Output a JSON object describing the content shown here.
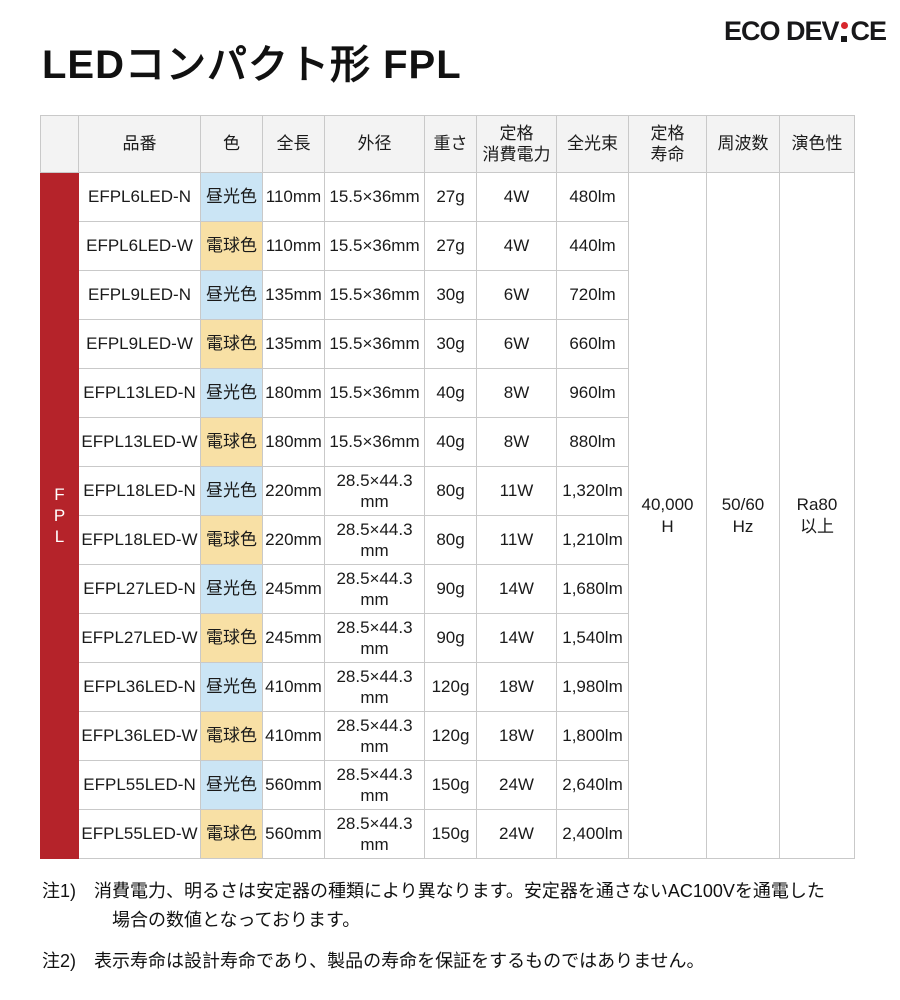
{
  "page": {
    "title": "LEDコンパクト形 FPL",
    "logo": {
      "part1": "ECO DEV",
      "part2": "CE"
    }
  },
  "colors": {
    "accent_red": "#b5232a",
    "daylight_bg": "#cbe5f5",
    "warm_bg": "#f8e0a5",
    "logo_dot_red": "#d7262c",
    "header_bg": "#f3f3f3",
    "border": "#c9c9c9"
  },
  "table": {
    "row_label": "FPL",
    "headers": [
      "品番",
      "色",
      "全長",
      "外径",
      "重さ",
      "定格\n消費電力",
      "全光束",
      "定格\n寿命",
      "周波数",
      "演色性"
    ],
    "rows": [
      {
        "model": "EFPL6LED-N",
        "color": "昼光色",
        "color_type": "daylight",
        "length": "110mm",
        "diameter": "15.5×36mm",
        "weight": "27g",
        "power": "4W",
        "flux": "480lm"
      },
      {
        "model": "EFPL6LED-W",
        "color": "電球色",
        "color_type": "warm",
        "length": "110mm",
        "diameter": "15.5×36mm",
        "weight": "27g",
        "power": "4W",
        "flux": "440lm"
      },
      {
        "model": "EFPL9LED-N",
        "color": "昼光色",
        "color_type": "daylight",
        "length": "135mm",
        "diameter": "15.5×36mm",
        "weight": "30g",
        "power": "6W",
        "flux": "720lm"
      },
      {
        "model": "EFPL9LED-W",
        "color": "電球色",
        "color_type": "warm",
        "length": "135mm",
        "diameter": "15.5×36mm",
        "weight": "30g",
        "power": "6W",
        "flux": "660lm"
      },
      {
        "model": "EFPL13LED-N",
        "color": "昼光色",
        "color_type": "daylight",
        "length": "180mm",
        "diameter": "15.5×36mm",
        "weight": "40g",
        "power": "8W",
        "flux": "960lm"
      },
      {
        "model": "EFPL13LED-W",
        "color": "電球色",
        "color_type": "warm",
        "length": "180mm",
        "diameter": "15.5×36mm",
        "weight": "40g",
        "power": "8W",
        "flux": "880lm"
      },
      {
        "model": "EFPL18LED-N",
        "color": "昼光色",
        "color_type": "daylight",
        "length": "220mm",
        "diameter": "28.5×44.3\nmm",
        "weight": "80g",
        "power": "11W",
        "flux": "1,320lm"
      },
      {
        "model": "EFPL18LED-W",
        "color": "電球色",
        "color_type": "warm",
        "length": "220mm",
        "diameter": "28.5×44.3\nmm",
        "weight": "80g",
        "power": "11W",
        "flux": "1,210lm"
      },
      {
        "model": "EFPL27LED-N",
        "color": "昼光色",
        "color_type": "daylight",
        "length": "245mm",
        "diameter": "28.5×44.3\nmm",
        "weight": "90g",
        "power": "14W",
        "flux": "1,680lm"
      },
      {
        "model": "EFPL27LED-W",
        "color": "電球色",
        "color_type": "warm",
        "length": "245mm",
        "diameter": "28.5×44.3\nmm",
        "weight": "90g",
        "power": "14W",
        "flux": "1,540lm"
      },
      {
        "model": "EFPL36LED-N",
        "color": "昼光色",
        "color_type": "daylight",
        "length": "410mm",
        "diameter": "28.5×44.3\nmm",
        "weight": "120g",
        "power": "18W",
        "flux": "1,980lm"
      },
      {
        "model": "EFPL36LED-W",
        "color": "電球色",
        "color_type": "warm",
        "length": "410mm",
        "diameter": "28.5×44.3\nmm",
        "weight": "120g",
        "power": "18W",
        "flux": "1,800lm"
      },
      {
        "model": "EFPL55LED-N",
        "color": "昼光色",
        "color_type": "daylight",
        "length": "560mm",
        "diameter": "28.5×44.3\nmm",
        "weight": "150g",
        "power": "24W",
        "flux": "2,640lm"
      },
      {
        "model": "EFPL55LED-W",
        "color": "電球色",
        "color_type": "warm",
        "length": "560mm",
        "diameter": "28.5×44.3\nmm",
        "weight": "150g",
        "power": "24W",
        "flux": "2,400lm"
      }
    ],
    "merged": {
      "life": "40,000\nH",
      "frequency": "50/60\nHz",
      "cri": "Ra80\n以上"
    }
  },
  "notes": [
    {
      "label": "注1)",
      "text": "消費電力、明るさは安定器の種類により異なります。安定器を通さないAC100Vを通電した\n　場合の数値となっております。"
    },
    {
      "label": "注2)",
      "text": "表示寿命は設計寿命であり、製品の寿命を保証をするものではありません。"
    }
  ]
}
